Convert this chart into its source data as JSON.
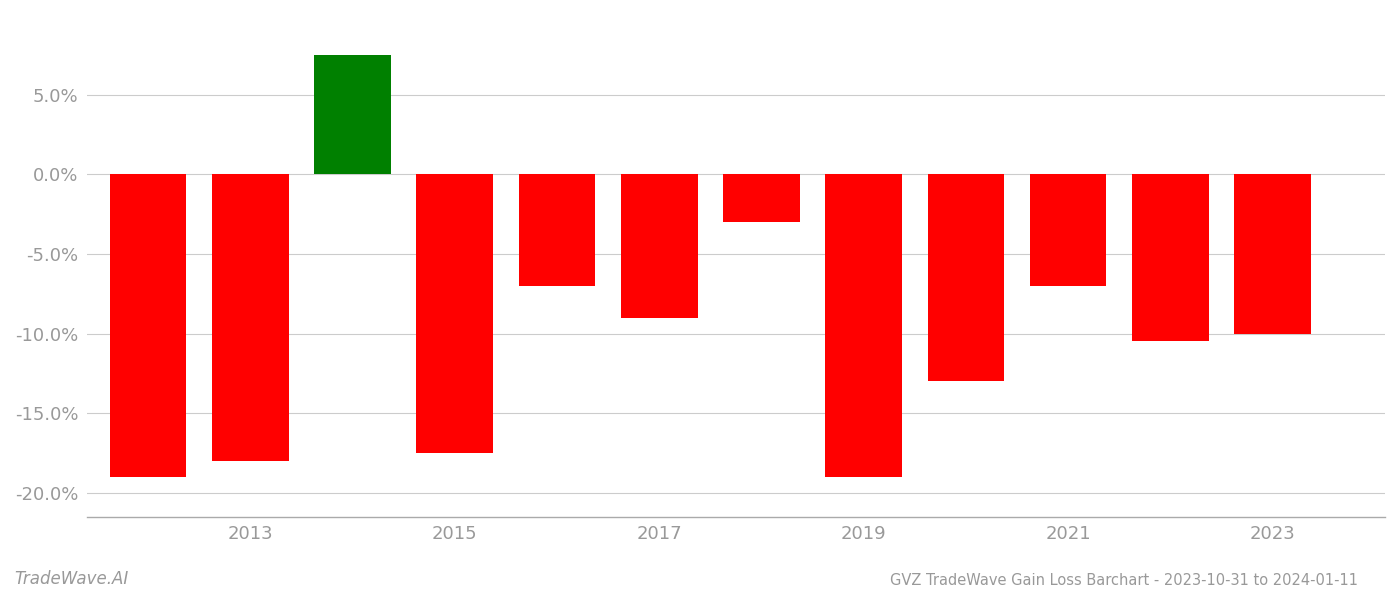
{
  "years": [
    2012,
    2013,
    2014,
    2015,
    2016,
    2017,
    2018,
    2019,
    2020,
    2021,
    2022,
    2023
  ],
  "values": [
    -0.19,
    -0.18,
    0.075,
    -0.175,
    -0.07,
    -0.09,
    -0.03,
    -0.19,
    -0.13,
    -0.07,
    -0.105,
    -0.1
  ],
  "colors": [
    "#ff0000",
    "#ff0000",
    "#008000",
    "#ff0000",
    "#ff0000",
    "#ff0000",
    "#ff0000",
    "#ff0000",
    "#ff0000",
    "#ff0000",
    "#ff0000",
    "#ff0000"
  ],
  "title": "GVZ TradeWave Gain Loss Barchart - 2023-10-31 to 2024-01-11",
  "watermark": "TradeWave.AI",
  "ylim": [
    -0.215,
    0.1
  ],
  "yticks": [
    -0.2,
    -0.15,
    -0.1,
    -0.05,
    0.0,
    0.05
  ],
  "xticks": [
    2013,
    2015,
    2017,
    2019,
    2021,
    2023
  ],
  "bar_width": 0.75,
  "grid_color": "#cccccc",
  "axis_color": "#aaaaaa",
  "tick_label_color": "#999999",
  "title_color": "#999999",
  "watermark_color": "#999999",
  "background_color": "#ffffff",
  "xlim": [
    2011.4,
    2024.1
  ]
}
